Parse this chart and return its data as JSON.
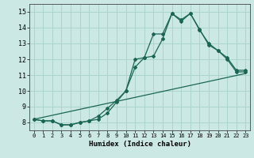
{
  "title": "",
  "xlabel": "Humidex (Indice chaleur)",
  "background_color": "#cce8e4",
  "grid_color": "#aad4cc",
  "line_color": "#1a6655",
  "xlim": [
    -0.5,
    23.5
  ],
  "ylim": [
    7.5,
    15.5
  ],
  "yticks": [
    8,
    9,
    10,
    11,
    12,
    13,
    14,
    15
  ],
  "xticks": [
    0,
    1,
    2,
    3,
    4,
    5,
    6,
    7,
    8,
    9,
    10,
    11,
    12,
    13,
    14,
    15,
    16,
    17,
    18,
    19,
    20,
    21,
    22,
    23
  ],
  "line1_x": [
    0,
    1,
    2,
    3,
    4,
    5,
    6,
    7,
    8,
    9,
    10,
    11,
    12,
    13,
    14,
    15,
    16,
    17,
    18,
    19,
    20,
    21,
    22,
    23
  ],
  "line1_y": [
    8.2,
    8.1,
    8.1,
    7.85,
    7.85,
    8.0,
    8.1,
    8.2,
    8.6,
    9.3,
    10.0,
    12.0,
    12.1,
    13.6,
    13.6,
    14.9,
    14.4,
    14.9,
    13.85,
    13.0,
    12.55,
    12.1,
    11.3,
    11.3
  ],
  "line2_x": [
    0,
    1,
    2,
    3,
    4,
    5,
    6,
    7,
    8,
    9,
    10,
    11,
    12,
    13,
    14,
    15,
    16,
    17,
    18,
    19,
    20,
    21,
    22,
    23
  ],
  "line2_y": [
    8.2,
    8.1,
    8.1,
    7.85,
    7.85,
    8.0,
    8.1,
    8.4,
    8.9,
    9.4,
    10.0,
    11.5,
    12.1,
    12.2,
    13.3,
    14.9,
    14.5,
    14.9,
    13.9,
    12.9,
    12.55,
    12.0,
    11.2,
    11.2
  ],
  "line3_x": [
    0,
    23
  ],
  "line3_y": [
    8.2,
    11.1
  ]
}
